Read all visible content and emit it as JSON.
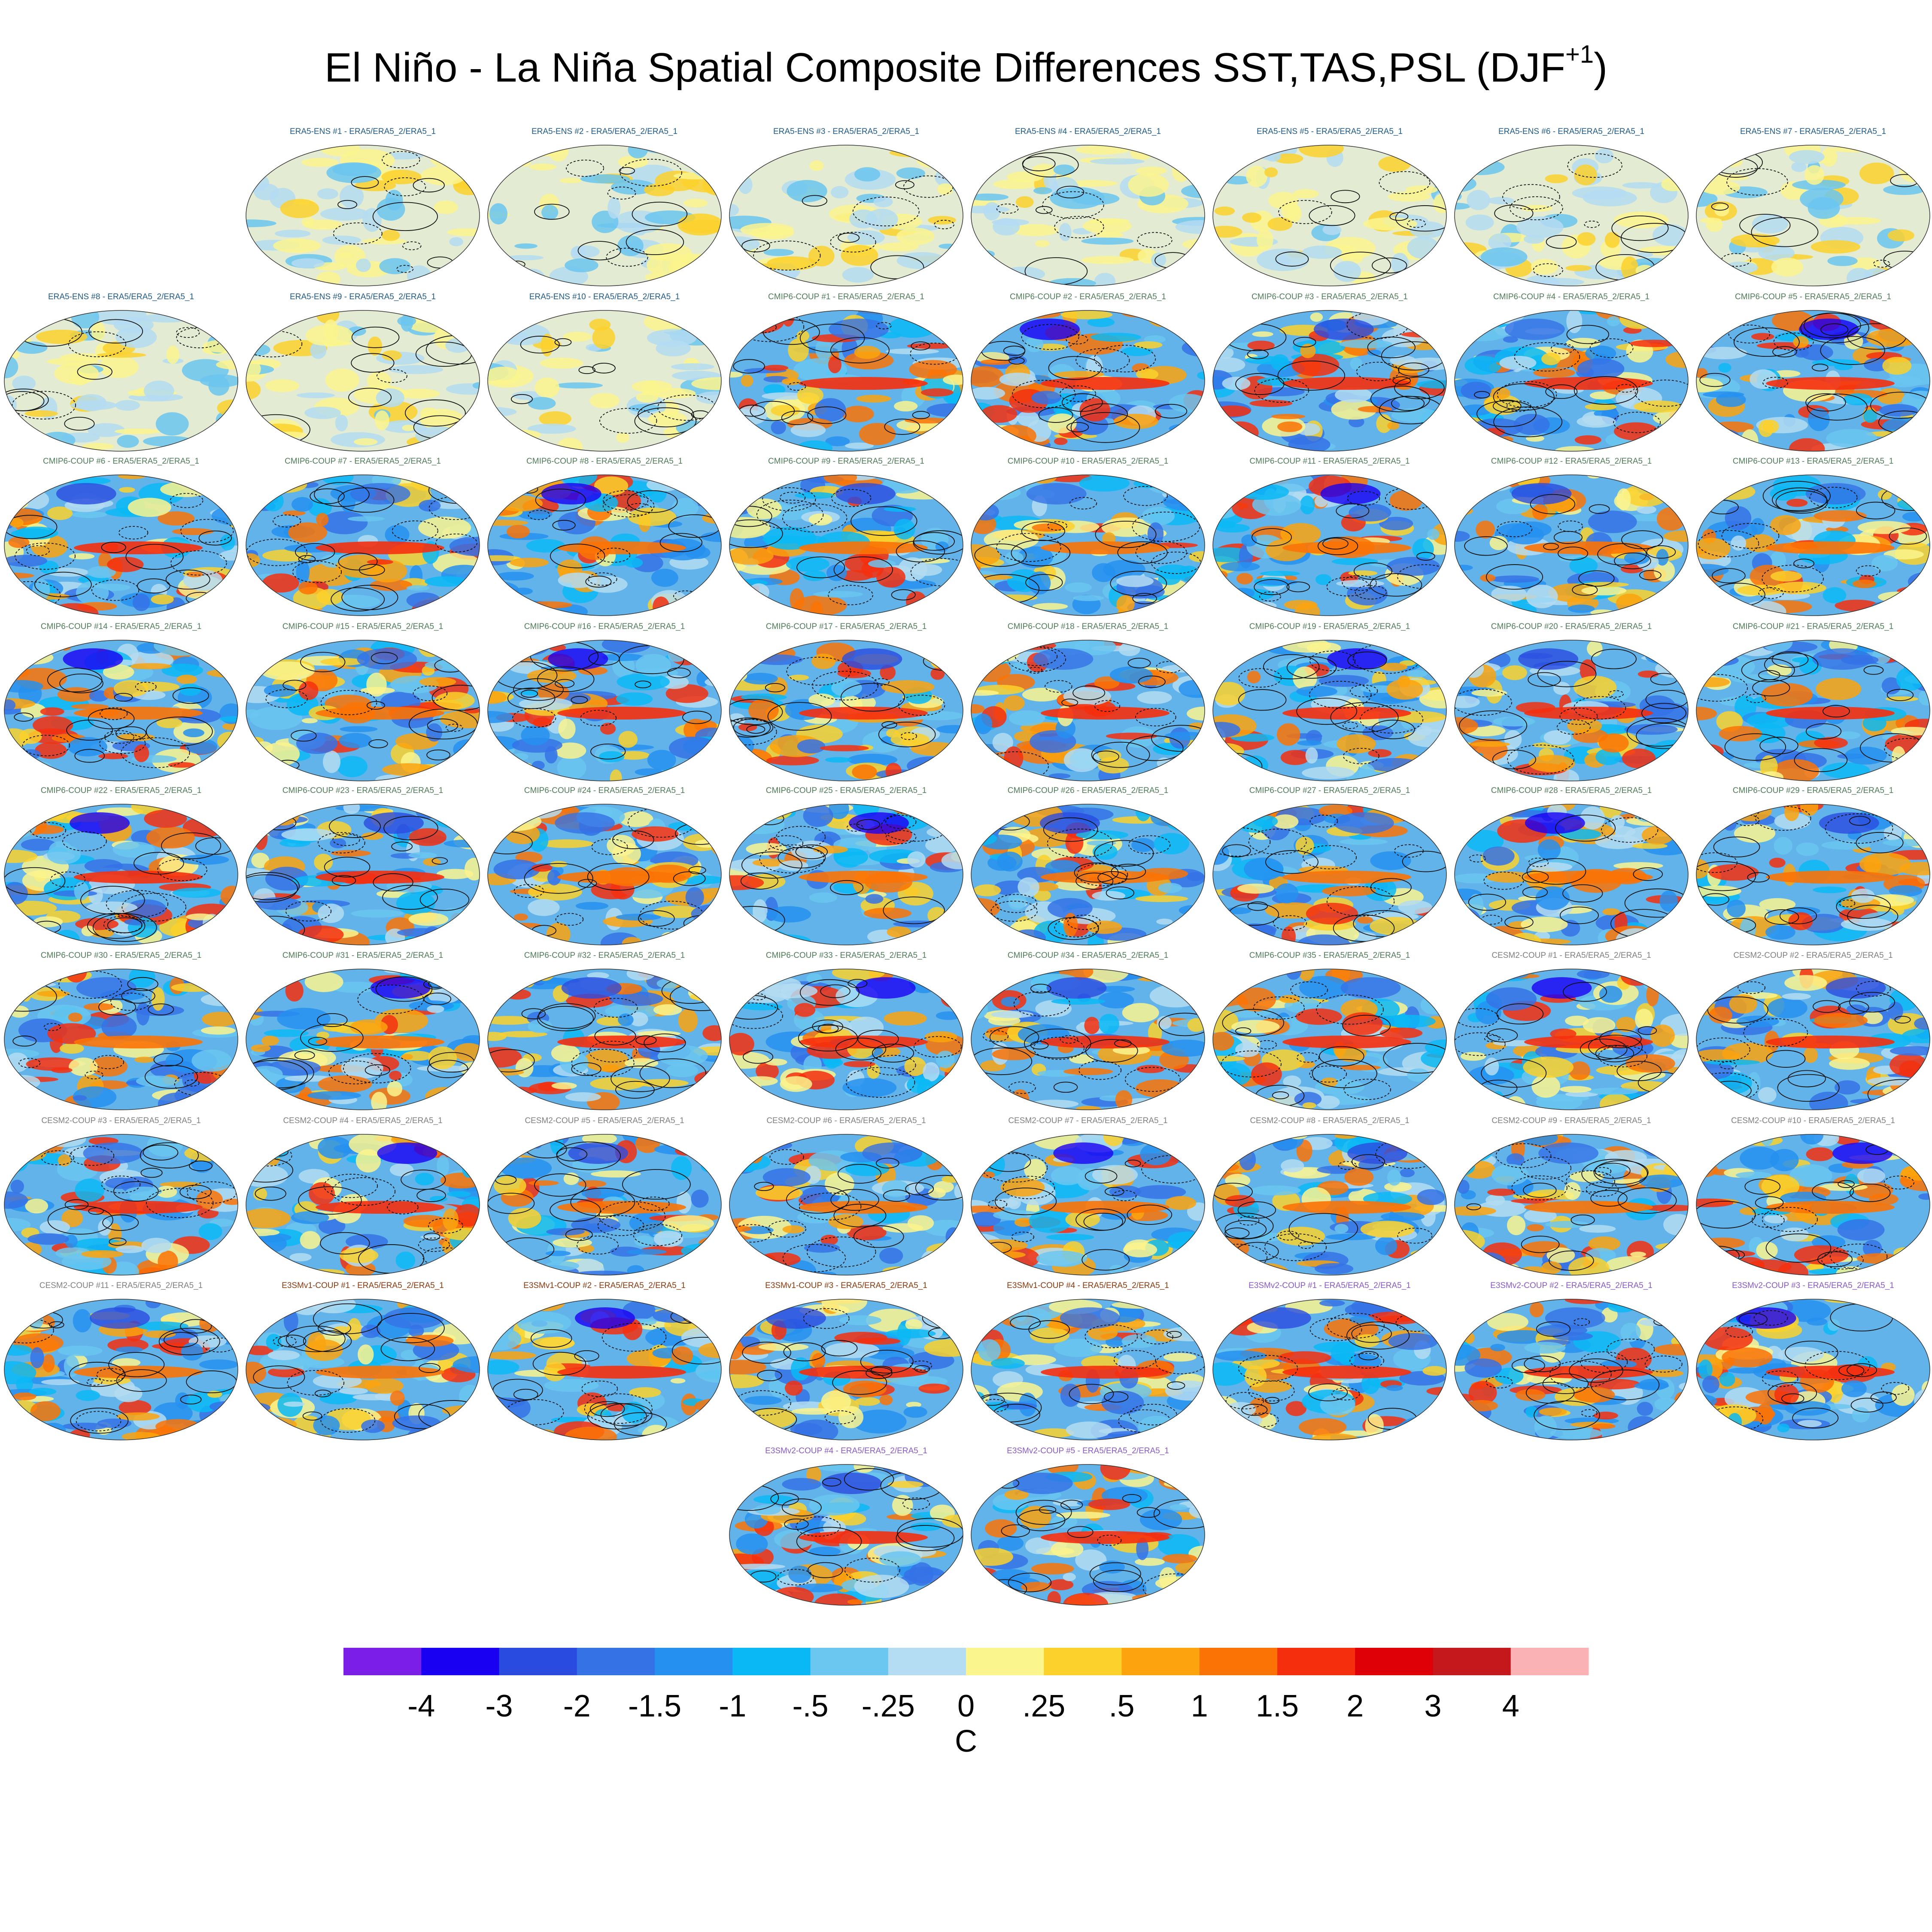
{
  "figure": {
    "title": "El Niño - La Niña Spatial Composite Differences SST,TAS,PSL (DJF",
    "title_superscript": "+1",
    "title_close": ")"
  },
  "group_colors": {
    "ERA5-ENS": "#1f5b8a",
    "CMIP6-COUP": "#4f7d58",
    "CESM2-COUP": "#808080",
    "E3SMv1-COUP": "#8b3a0e",
    "E3SMv2-COUP": "#8a5ac8"
  },
  "chart_data": {
    "type": "heatmap",
    "title": "El Niño - La Niña Spatial Composite Differences SST,TAS,PSL (DJF+1)",
    "variables": [
      "SST",
      "TAS",
      "PSL"
    ],
    "season": "DJF+1",
    "projection": "global map grid (filled temperature anomaly, PSL contour lines)",
    "rows": [
      [
        "ERA5-ENS  #1 - ERA5/ERA5_2/ERA5_1",
        "ERA5-ENS  #2 - ERA5/ERA5_2/ERA5_1",
        "ERA5-ENS  #3 - ERA5/ERA5_2/ERA5_1",
        "ERA5-ENS  #4 - ERA5/ERA5_2/ERA5_1",
        "ERA5-ENS  #5 - ERA5/ERA5_2/ERA5_1",
        "ERA5-ENS  #6 - ERA5/ERA5_2/ERA5_1",
        "ERA5-ENS  #7 - ERA5/ERA5_2/ERA5_1"
      ],
      [
        "ERA5-ENS  #8 - ERA5/ERA5_2/ERA5_1",
        "ERA5-ENS  #9 - ERA5/ERA5_2/ERA5_1",
        "ERA5-ENS  #10 - ERA5/ERA5_2/ERA5_1",
        "CMIP6-COUP  #1 - ERA5/ERA5_2/ERA5_1",
        "CMIP6-COUP  #2 - ERA5/ERA5_2/ERA5_1",
        "CMIP6-COUP  #3 - ERA5/ERA5_2/ERA5_1",
        "CMIP6-COUP  #4 - ERA5/ERA5_2/ERA5_1",
        "CMIP6-COUP  #5 - ERA5/ERA5_2/ERA5_1"
      ],
      [
        "CMIP6-COUP  #6 - ERA5/ERA5_2/ERA5_1",
        "CMIP6-COUP  #7 - ERA5/ERA5_2/ERA5_1",
        "CMIP6-COUP  #8 - ERA5/ERA5_2/ERA5_1",
        "CMIP6-COUP  #9 - ERA5/ERA5_2/ERA5_1",
        "CMIP6-COUP  #10 - ERA5/ERA5_2/ERA5_1",
        "CMIP6-COUP  #11 - ERA5/ERA5_2/ERA5_1",
        "CMIP6-COUP  #12 - ERA5/ERA5_2/ERA5_1",
        "CMIP6-COUP  #13 - ERA5/ERA5_2/ERA5_1"
      ],
      [
        "CMIP6-COUP  #14 - ERA5/ERA5_2/ERA5_1",
        "CMIP6-COUP  #15 - ERA5/ERA5_2/ERA5_1",
        "CMIP6-COUP  #16 - ERA5/ERA5_2/ERA5_1",
        "CMIP6-COUP  #17 - ERA5/ERA5_2/ERA5_1",
        "CMIP6-COUP  #18 - ERA5/ERA5_2/ERA5_1",
        "CMIP6-COUP  #19 - ERA5/ERA5_2/ERA5_1",
        "CMIP6-COUP  #20 - ERA5/ERA5_2/ERA5_1",
        "CMIP6-COUP  #21 - ERA5/ERA5_2/ERA5_1"
      ],
      [
        "CMIP6-COUP  #22 - ERA5/ERA5_2/ERA5_1",
        "CMIP6-COUP  #23 - ERA5/ERA5_2/ERA5_1",
        "CMIP6-COUP  #24 - ERA5/ERA5_2/ERA5_1",
        "CMIP6-COUP  #25 - ERA5/ERA5_2/ERA5_1",
        "CMIP6-COUP  #26 - ERA5/ERA5_2/ERA5_1",
        "CMIP6-COUP  #27 - ERA5/ERA5_2/ERA5_1",
        "CMIP6-COUP  #28 - ERA5/ERA5_2/ERA5_1",
        "CMIP6-COUP  #29 - ERA5/ERA5_2/ERA5_1"
      ],
      [
        "CMIP6-COUP  #30 - ERA5/ERA5_2/ERA5_1",
        "CMIP6-COUP  #31 - ERA5/ERA5_2/ERA5_1",
        "CMIP6-COUP  #32 - ERA5/ERA5_2/ERA5_1",
        "CMIP6-COUP  #33 - ERA5/ERA5_2/ERA5_1",
        "CMIP6-COUP  #34 - ERA5/ERA5_2/ERA5_1",
        "CMIP6-COUP  #35 - ERA5/ERA5_2/ERA5_1",
        "CESM2-COUP  #1 - ERA5/ERA5_2/ERA5_1",
        "CESM2-COUP  #2 - ERA5/ERA5_2/ERA5_1"
      ],
      [
        "CESM2-COUP  #3 - ERA5/ERA5_2/ERA5_1",
        "CESM2-COUP  #4 - ERA5/ERA5_2/ERA5_1",
        "CESM2-COUP  #5 - ERA5/ERA5_2/ERA5_1",
        "CESM2-COUP  #6 - ERA5/ERA5_2/ERA5_1",
        "CESM2-COUP  #7 - ERA5/ERA5_2/ERA5_1",
        "CESM2-COUP  #8 - ERA5/ERA5_2/ERA5_1",
        "CESM2-COUP  #9 - ERA5/ERA5_2/ERA5_1",
        "CESM2-COUP  #10 - ERA5/ERA5_2/ERA5_1"
      ],
      [
        "CESM2-COUP  #11 - ERA5/ERA5_2/ERA5_1",
        "E3SMv1-COUP #1 - ERA5/ERA5_2/ERA5_1",
        "E3SMv1-COUP #2 - ERA5/ERA5_2/ERA5_1",
        "E3SMv1-COUP #3 - ERA5/ERA5_2/ERA5_1",
        "E3SMv1-COUP #4 - ERA5/ERA5_2/ERA5_1",
        "E3SMv2-COUP #1 - ERA5/ERA5_2/ERA5_1",
        "E3SMv2-COUP #2 - ERA5/ERA5_2/ERA5_1",
        "E3SMv2-COUP #3 - ERA5/ERA5_2/ERA5_1"
      ],
      [
        "E3SMv2-COUP #4 - ERA5/ERA5_2/ERA5_1",
        "E3SMv2-COUP #5 - ERA5/ERA5_2/ERA5_1"
      ]
    ],
    "row_start_columns": [
      1,
      0,
      0,
      0,
      0,
      0,
      0,
      0,
      3
    ],
    "colorbar": {
      "units": "C",
      "levels": [
        "-4",
        "-3",
        "-2",
        "-1.5",
        "-1",
        "-.5",
        "-.25",
        "0",
        ".25",
        ".5",
        "1",
        "1.5",
        "2",
        "3",
        "4"
      ],
      "colors": [
        "#7b1ee8",
        "#1a00f2",
        "#2a4be0",
        "#3572e6",
        "#2690f0",
        "#0ab8f5",
        "#6bc6f0",
        "#b4dcf2",
        "#fbf58e",
        "#fcd12c",
        "#fca30e",
        "#fb7305",
        "#f52f0e",
        "#df0007",
        "#c4181c",
        "#fab2b4"
      ]
    }
  }
}
